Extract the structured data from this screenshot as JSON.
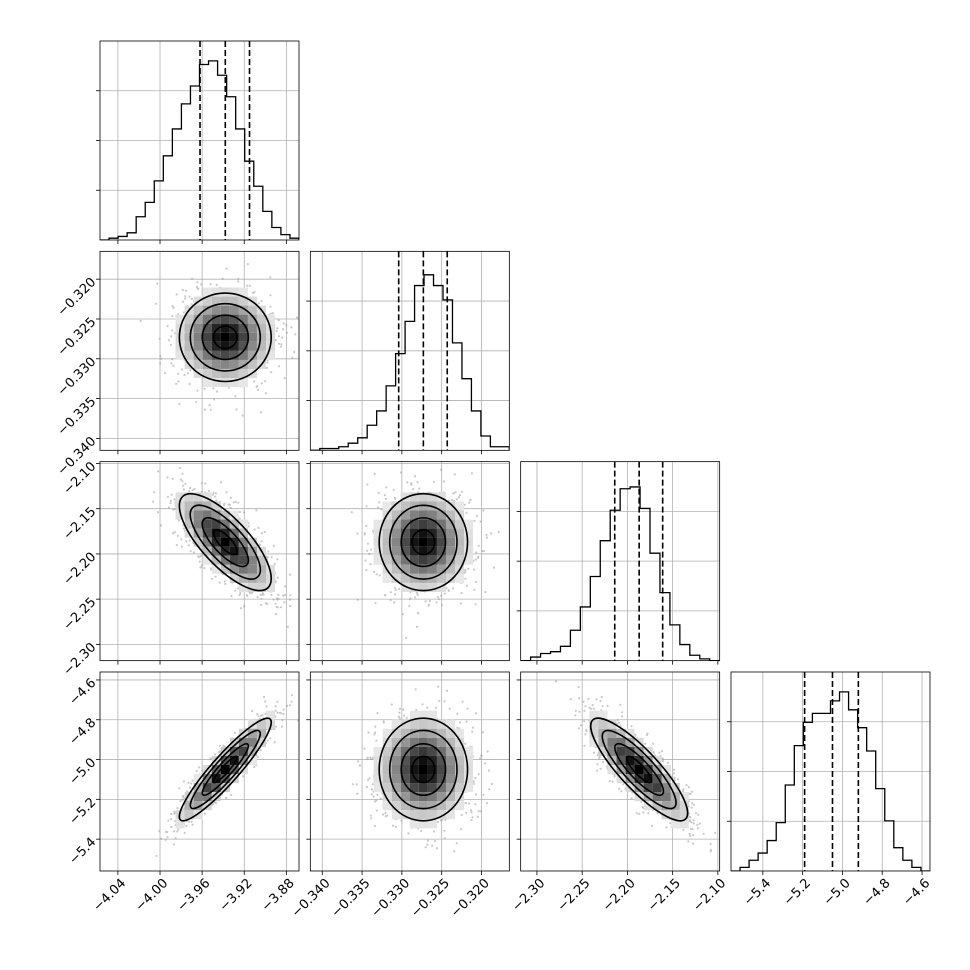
{
  "chart_data": {
    "type": "corner",
    "variables": [
      {
        "range": [
          -4.057,
          -3.868
        ],
        "ticks": [
          -4.04,
          -4.0,
          -3.96,
          -3.92,
          -3.88
        ],
        "tick_labels": [
          "−4.04",
          "−4.00",
          "−3.96",
          "−3.92",
          "−3.88"
        ],
        "quantiles": [
          -3.962,
          -3.938,
          -3.915
        ],
        "center": -3.938,
        "sd": 0.022,
        "hist": [
          0.0,
          0.01,
          0.02,
          0.04,
          0.13,
          0.21,
          0.33,
          0.47,
          0.62,
          0.76,
          0.86,
          0.98,
          1.0,
          0.92,
          0.8,
          0.62,
          0.44,
          0.3,
          0.16,
          0.07,
          0.03,
          0.01
        ]
      },
      {
        "range": [
          -0.3415,
          -0.3165
        ],
        "ticks": [
          -0.34,
          -0.335,
          -0.33,
          -0.325,
          -0.32
        ],
        "tick_labels": [
          "−0.340",
          "−0.335",
          "−0.330",
          "−0.325",
          "−0.320"
        ],
        "quantiles": [
          -0.3304,
          -0.3273,
          -0.3243
        ],
        "center": -0.3273,
        "sd": 0.0028,
        "hist": [
          0.0,
          0.01,
          0.01,
          0.02,
          0.04,
          0.07,
          0.14,
          0.22,
          0.36,
          0.54,
          0.72,
          0.92,
          0.98,
          0.92,
          0.84,
          0.6,
          0.4,
          0.22,
          0.08,
          0.02,
          0.02
        ]
      },
      {
        "range": [
          -2.318,
          -2.098
        ],
        "ticks": [
          -2.3,
          -2.25,
          -2.2,
          -2.15,
          -2.1
        ],
        "tick_labels": [
          "−2.30",
          "−2.25",
          "−2.20",
          "−2.15",
          "−2.10"
        ],
        "quantiles": [
          -2.214,
          -2.187,
          -2.161
        ],
        "center": -2.187,
        "sd": 0.027,
        "hist": [
          0.0,
          0.02,
          0.04,
          0.05,
          0.08,
          0.17,
          0.3,
          0.47,
          0.67,
          0.84,
          0.96,
          0.97,
          0.85,
          0.6,
          0.38,
          0.2,
          0.09,
          0.03,
          0.01,
          0.0
        ]
      },
      {
        "range": [
          -5.56,
          -4.56
        ],
        "ticks": [
          -5.4,
          -5.2,
          -5.0,
          -4.8,
          -4.6
        ],
        "tick_labels": [
          "−5.4",
          "−5.2",
          "−5.0",
          "−4.8",
          "−4.6"
        ],
        "quantiles": [
          -5.19,
          -5.05,
          -4.92
        ],
        "center": -5.05,
        "sd": 0.13,
        "hist": [
          0.0,
          0.02,
          0.06,
          0.1,
          0.17,
          0.27,
          0.48,
          0.7,
          0.83,
          0.88,
          0.88,
          0.95,
          1.0,
          0.9,
          0.8,
          0.67,
          0.46,
          0.28,
          0.13,
          0.06,
          0.02,
          0.0
        ]
      }
    ],
    "correlations": {
      "1-0": 0.0,
      "2-0": -0.75,
      "2-1": 0.0,
      "3-0": 0.92,
      "3-1": 0.0,
      "3-2": -0.85
    },
    "grid": true,
    "contour_levels": [
      0.12,
      0.39,
      0.68,
      0.86
    ],
    "colors": {
      "line": "#000000",
      "grid": "#b0b0b0",
      "points": "#9a9a9a",
      "quantile_line": "#000000"
    }
  }
}
